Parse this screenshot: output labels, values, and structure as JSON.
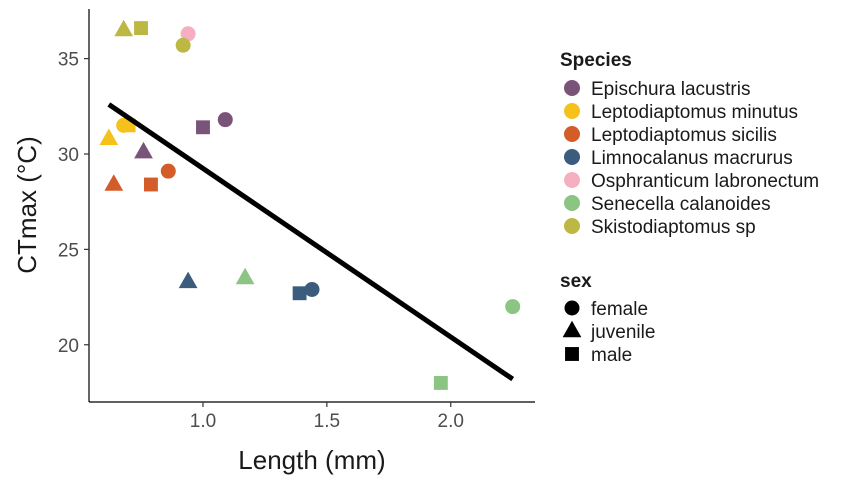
{
  "chart_data": {
    "type": "scatter",
    "xlabel": "Length (mm)",
    "ylabel": "CTmax (°C)",
    "xlim": [
      0.54,
      2.34
    ],
    "ylim": [
      17.0,
      37.6
    ],
    "x_ticks": [
      1.0,
      1.5,
      2.0
    ],
    "x_tick_labels": [
      "1.0",
      "1.5",
      "2.0"
    ],
    "y_ticks": [
      20,
      25,
      30,
      35
    ],
    "y_tick_labels": [
      "20",
      "25",
      "30",
      "35"
    ],
    "grid": false,
    "legend_position": "right",
    "legends": {
      "color": {
        "title": "Species",
        "entries": [
          {
            "name": "Epischura lacustris",
            "color": "#7a5379"
          },
          {
            "name": "Leptodiaptomus minutus",
            "color": "#f5c21b"
          },
          {
            "name": "Leptodiaptomus sicilis",
            "color": "#d35c29"
          },
          {
            "name": "Limnocalanus macrurus",
            "color": "#3c5c7e"
          },
          {
            "name": "Osphranticum labronectum",
            "color": "#f6aec1"
          },
          {
            "name": "Senecella calanoides",
            "color": "#8cc484"
          },
          {
            "name": "Skistodiaptomus sp",
            "color": "#bdb843"
          }
        ]
      },
      "shape": {
        "title": "sex",
        "entries": [
          {
            "name": "female",
            "shape": "circle"
          },
          {
            "name": "juvenile",
            "shape": "triangle"
          },
          {
            "name": "male",
            "shape": "square"
          }
        ]
      }
    },
    "points": [
      {
        "species": "Epischura lacustris",
        "sex": "female",
        "x": 1.09,
        "y": 31.8
      },
      {
        "species": "Epischura lacustris",
        "sex": "juvenile",
        "x": 0.76,
        "y": 30.1
      },
      {
        "species": "Epischura lacustris",
        "sex": "male",
        "x": 1.0,
        "y": 31.4
      },
      {
        "species": "Leptodiaptomus minutus",
        "sex": "female",
        "x": 0.68,
        "y": 31.5
      },
      {
        "species": "Leptodiaptomus minutus",
        "sex": "juvenile",
        "x": 0.62,
        "y": 30.8
      },
      {
        "species": "Leptodiaptomus minutus",
        "sex": "male",
        "x": 0.7,
        "y": 31.5
      },
      {
        "species": "Leptodiaptomus sicilis",
        "sex": "female",
        "x": 0.86,
        "y": 29.1
      },
      {
        "species": "Leptodiaptomus sicilis",
        "sex": "juvenile",
        "x": 0.64,
        "y": 28.4
      },
      {
        "species": "Leptodiaptomus sicilis",
        "sex": "male",
        "x": 0.79,
        "y": 28.4
      },
      {
        "species": "Limnocalanus macrurus",
        "sex": "female",
        "x": 1.44,
        "y": 22.9
      },
      {
        "species": "Limnocalanus macrurus",
        "sex": "juvenile",
        "x": 0.94,
        "y": 23.3
      },
      {
        "species": "Limnocalanus macrurus",
        "sex": "male",
        "x": 1.39,
        "y": 22.7
      },
      {
        "species": "Osphranticum labronectum",
        "sex": "female",
        "x": 0.94,
        "y": 36.3
      },
      {
        "species": "Senecella calanoides",
        "sex": "female",
        "x": 2.25,
        "y": 22.0
      },
      {
        "species": "Senecella calanoides",
        "sex": "juvenile",
        "x": 1.17,
        "y": 23.5
      },
      {
        "species": "Senecella calanoides",
        "sex": "male",
        "x": 1.96,
        "y": 18.0
      },
      {
        "species": "Skistodiaptomus sp",
        "sex": "female",
        "x": 0.92,
        "y": 35.7
      },
      {
        "species": "Skistodiaptomus sp",
        "sex": "juvenile",
        "x": 0.68,
        "y": 36.5
      },
      {
        "species": "Skistodiaptomus sp",
        "sex": "male",
        "x": 0.75,
        "y": 36.6
      }
    ],
    "trend_line": {
      "x": [
        0.62,
        2.25
      ],
      "y": [
        32.6,
        18.2
      ],
      "color": "#000000"
    }
  }
}
